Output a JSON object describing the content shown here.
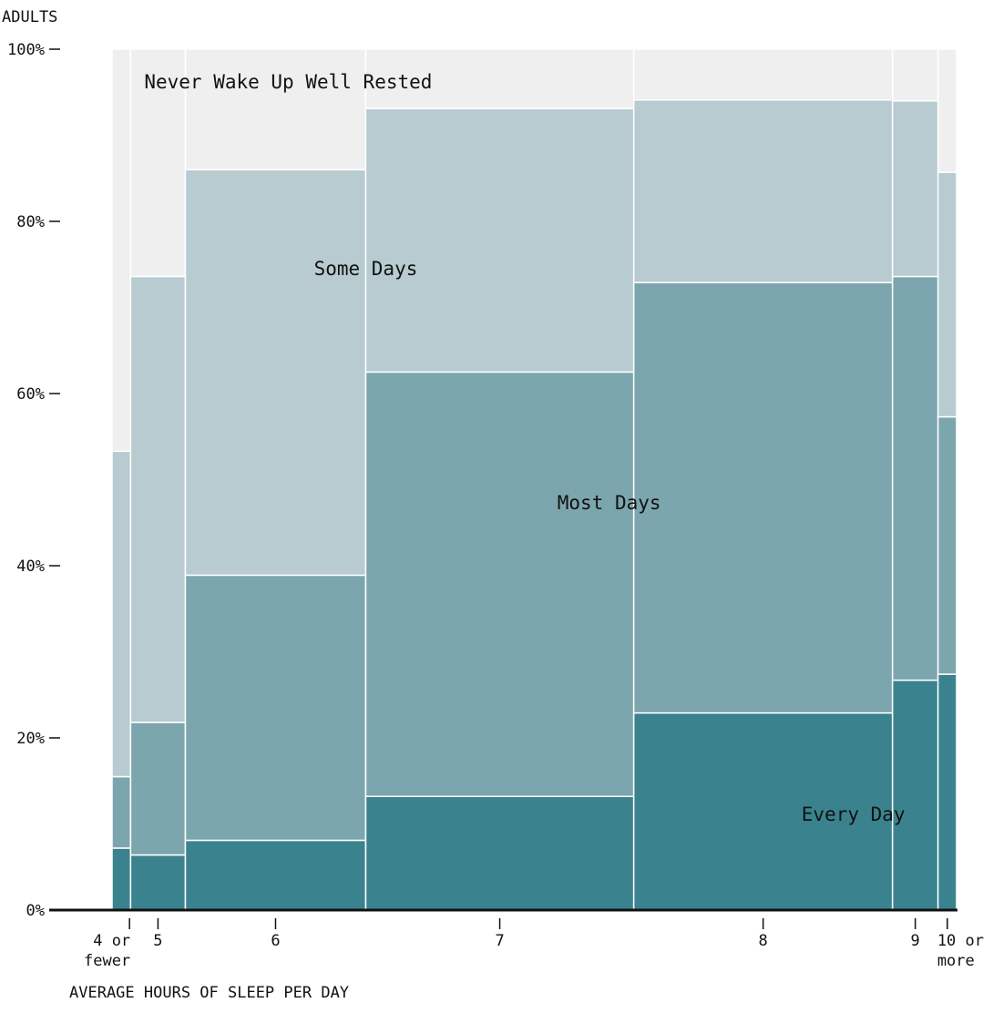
{
  "chart_data": {
    "type": "mosaic",
    "ylabel": "ADULTS",
    "xlabel": "AVERAGE HOURS OF SLEEP PER DAY",
    "ylim": [
      0,
      100
    ],
    "y_ticks": [
      0,
      20,
      40,
      60,
      80,
      100
    ],
    "y_tick_labels": [
      "0%",
      "20%",
      "40%",
      "60%",
      "80%",
      "100%"
    ],
    "categories": [
      "4 or fewer",
      "5",
      "6",
      "7",
      "8",
      "9",
      "10 or more"
    ],
    "category_labels": [
      [
        "4 or",
        "fewer"
      ],
      [
        "5"
      ],
      [
        "6"
      ],
      [
        "7"
      ],
      [
        "8"
      ],
      [
        "9"
      ],
      [
        "10 or",
        "more"
      ]
    ],
    "category_share_percent": [
      2.2,
      6.5,
      21.4,
      31.8,
      30.7,
      5.4,
      2.2
    ],
    "series": [
      {
        "name": "Every Day",
        "values": [
          7.2,
          6.4,
          8.1,
          13.2,
          22.9,
          26.7,
          27.4
        ]
      },
      {
        "name": "Most Days",
        "values": [
          8.3,
          15.4,
          30.8,
          49.3,
          50.0,
          46.9,
          29.9
        ]
      },
      {
        "name": "Some Days",
        "values": [
          37.8,
          51.8,
          47.1,
          30.6,
          21.2,
          20.4,
          28.4
        ]
      },
      {
        "name": "Never Wake Up Well Rested",
        "values": [
          46.7,
          26.4,
          14.0,
          6.9,
          5.9,
          6.0,
          14.3
        ]
      }
    ],
    "colors": {
      "Every Day": "#3a838e",
      "Most Days": "#7ca6ae",
      "Some Days": "#b7cbd0",
      "Never Wake Up Well Rested": "#efefef"
    },
    "region_labels": [
      {
        "text": "Never Wake Up Well Rested",
        "series": "Never Wake Up Well Rested"
      },
      {
        "text": "Some Days",
        "series": "Some Days"
      },
      {
        "text": "Most Days",
        "series": "Most Days"
      },
      {
        "text": "Every Day",
        "series": "Every Day"
      }
    ],
    "grid": false,
    "legend": "none"
  }
}
